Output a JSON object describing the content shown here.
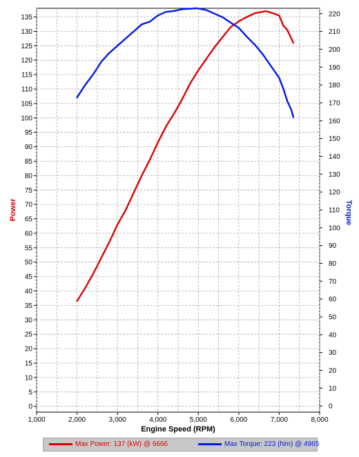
{
  "chart_data": {
    "type": "line",
    "title": "",
    "xlabel": "Engine Speed (RPM)",
    "ylabel_left": "Power",
    "ylabel_right": "Torque",
    "xlim": [
      1000,
      8000
    ],
    "ylim_left": [
      -2,
      138
    ],
    "ylim_right": [
      -3.4,
      223
    ],
    "x_ticks": [
      1000,
      2000,
      3000,
      4000,
      5000,
      6000,
      7000,
      8000
    ],
    "x_tick_labels": [
      "1,000",
      "2,000",
      "3,000",
      "4,000",
      "5,000",
      "6,000",
      "7,000",
      "8,000"
    ],
    "y_left_ticks": [
      0,
      5,
      10,
      15,
      20,
      25,
      30,
      35,
      40,
      45,
      50,
      55,
      60,
      65,
      70,
      75,
      80,
      85,
      90,
      95,
      100,
      105,
      110,
      115,
      120,
      125,
      130,
      135
    ],
    "y_right_ticks": [
      0,
      10,
      20,
      30,
      40,
      50,
      60,
      70,
      80,
      90,
      100,
      110,
      120,
      130,
      140,
      150,
      160,
      170,
      180,
      190,
      200,
      210,
      220
    ],
    "grid": true,
    "series": [
      {
        "name": "Power",
        "color": "#e00000",
        "axis": "left",
        "x": [
          2000,
          2200,
          2400,
          2600,
          2800,
          3000,
          3200,
          3400,
          3600,
          3800,
          4000,
          4200,
          4400,
          4600,
          4800,
          5000,
          5200,
          5400,
          5600,
          5800,
          6000,
          6200,
          6400,
          6666,
          6800,
          7000,
          7100,
          7200,
          7300,
          7350
        ],
        "values": [
          36.5,
          41,
          46,
          51.5,
          57,
          63,
          68,
          74,
          80,
          85.5,
          91.5,
          97,
          101.5,
          106.5,
          112,
          116.5,
          120.5,
          124.5,
          128,
          131.5,
          133.5,
          135,
          136.3,
          137,
          136.5,
          135.5,
          132,
          130.5,
          127.5,
          126
        ]
      },
      {
        "name": "Torque",
        "color": "#0018e0",
        "axis": "right",
        "x": [
          2000,
          2200,
          2400,
          2600,
          2800,
          3000,
          3200,
          3400,
          3600,
          3800,
          4000,
          4200,
          4400,
          4600,
          4965,
          5200,
          5400,
          5600,
          5800,
          6000,
          6200,
          6400,
          6600,
          6800,
          7000,
          7100,
          7200,
          7300,
          7350
        ],
        "values": [
          173,
          180,
          186,
          193,
          198,
          202,
          206,
          210,
          214,
          215.5,
          219,
          221,
          221.5,
          222.5,
          223,
          222,
          220,
          218,
          215,
          212,
          207,
          202.5,
          197,
          190.5,
          184,
          178,
          171,
          166,
          162
        ]
      }
    ]
  },
  "legend": {
    "power_label": "Max Power: 137 (kW) @ 6666",
    "torque_label": "Max Torque: 223 (Nm) @ 4965"
  }
}
